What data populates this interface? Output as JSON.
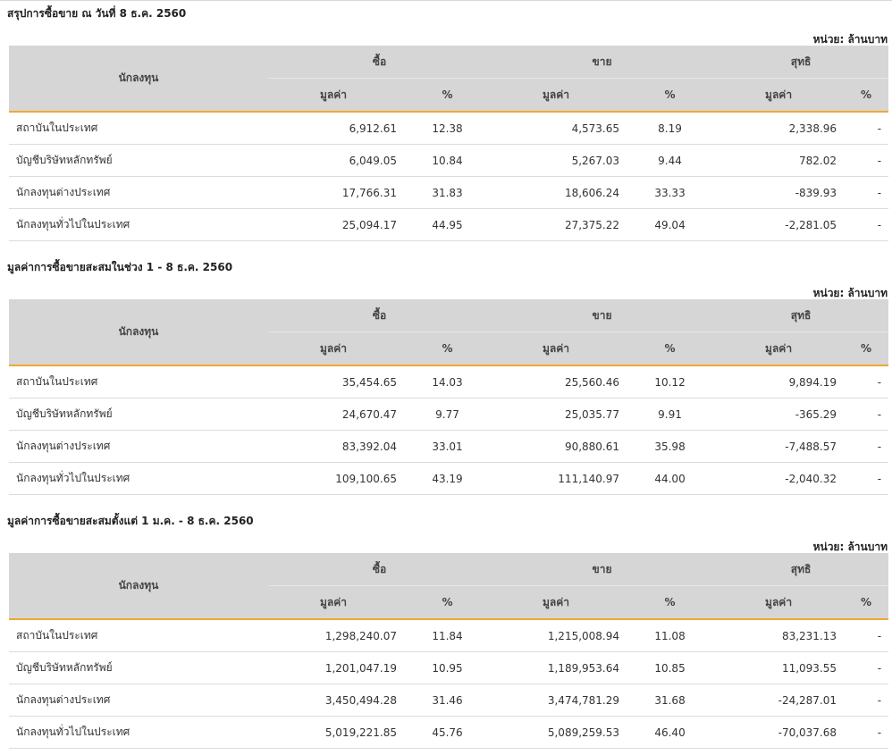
{
  "labels": {
    "unit": "หน่วย: ล้านบาท",
    "investor": "นักลงทุน",
    "buy": "ซื้อ",
    "sell": "ขาย",
    "net": "สุทธิ",
    "value": "มูลค่า",
    "percent": "%"
  },
  "sections": [
    {
      "title": "สรุปการซื้อขาย ณ วันที่ 8 ธ.ค. 2560",
      "rows": [
        {
          "name": "สถาบันในประเทศ",
          "buy_value": "6,912.61",
          "buy_pct": "12.38",
          "sell_value": "4,573.65",
          "sell_pct": "8.19",
          "net_value": "2,338.96",
          "net_pct": "-",
          "net_sign": "pos"
        },
        {
          "name": "บัญชีบริษัทหลักทรัพย์",
          "buy_value": "6,049.05",
          "buy_pct": "10.84",
          "sell_value": "5,267.03",
          "sell_pct": "9.44",
          "net_value": "782.02",
          "net_pct": "-",
          "net_sign": "pos"
        },
        {
          "name": "นักลงทุนต่างประเทศ",
          "buy_value": "17,766.31",
          "buy_pct": "31.83",
          "sell_value": "18,606.24",
          "sell_pct": "33.33",
          "net_value": "-839.93",
          "net_pct": "-",
          "net_sign": "neg"
        },
        {
          "name": "นักลงทุนทั่วไปในประเทศ",
          "buy_value": "25,094.17",
          "buy_pct": "44.95",
          "sell_value": "27,375.22",
          "sell_pct": "49.04",
          "net_value": "-2,281.05",
          "net_pct": "-",
          "net_sign": "neg"
        }
      ]
    },
    {
      "title": "มูลค่าการซื้อขายสะสมในช่วง 1 - 8 ธ.ค. 2560",
      "rows": [
        {
          "name": "สถาบันในประเทศ",
          "buy_value": "35,454.65",
          "buy_pct": "14.03",
          "sell_value": "25,560.46",
          "sell_pct": "10.12",
          "net_value": "9,894.19",
          "net_pct": "-",
          "net_sign": "pos"
        },
        {
          "name": "บัญชีบริษัทหลักทรัพย์",
          "buy_value": "24,670.47",
          "buy_pct": "9.77",
          "sell_value": "25,035.77",
          "sell_pct": "9.91",
          "net_value": "-365.29",
          "net_pct": "-",
          "net_sign": "neg"
        },
        {
          "name": "นักลงทุนต่างประเทศ",
          "buy_value": "83,392.04",
          "buy_pct": "33.01",
          "sell_value": "90,880.61",
          "sell_pct": "35.98",
          "net_value": "-7,488.57",
          "net_pct": "-",
          "net_sign": "neg"
        },
        {
          "name": "นักลงทุนทั่วไปในประเทศ",
          "buy_value": "109,100.65",
          "buy_pct": "43.19",
          "sell_value": "111,140.97",
          "sell_pct": "44.00",
          "net_value": "-2,040.32",
          "net_pct": "-",
          "net_sign": "neg"
        }
      ]
    },
    {
      "title": "มูลค่าการซื้อขายสะสมตั้งแต่ 1 ม.ค. - 8 ธ.ค. 2560",
      "rows": [
        {
          "name": "สถาบันในประเทศ",
          "buy_value": "1,298,240.07",
          "buy_pct": "11.84",
          "sell_value": "1,215,008.94",
          "sell_pct": "11.08",
          "net_value": "83,231.13",
          "net_pct": "-",
          "net_sign": "pos"
        },
        {
          "name": "บัญชีบริษัทหลักทรัพย์",
          "buy_value": "1,201,047.19",
          "buy_pct": "10.95",
          "sell_value": "1,189,953.64",
          "sell_pct": "10.85",
          "net_value": "11,093.55",
          "net_pct": "-",
          "net_sign": "pos"
        },
        {
          "name": "นักลงทุนต่างประเทศ",
          "buy_value": "3,450,494.28",
          "buy_pct": "31.46",
          "sell_value": "3,474,781.29",
          "sell_pct": "31.68",
          "net_value": "-24,287.01",
          "net_pct": "-",
          "net_sign": "neg"
        },
        {
          "name": "นักลงทุนทั่วไปในประเทศ",
          "buy_value": "5,019,221.85",
          "buy_pct": "45.76",
          "sell_value": "5,089,259.53",
          "sell_pct": "46.40",
          "net_value": "-70,037.68",
          "net_pct": "-",
          "net_sign": "neg"
        }
      ]
    }
  ]
}
